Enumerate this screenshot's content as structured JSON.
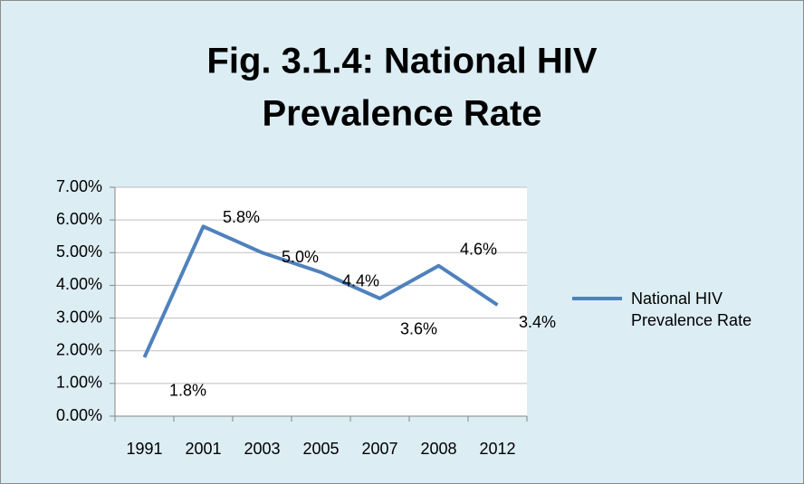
{
  "chart_data": {
    "type": "line",
    "title": [
      "Fig. 3.1.4: National HIV",
      "Prevalence Rate"
    ],
    "categories": [
      "1991",
      "2001",
      "2003",
      "2005",
      "2007",
      "2008",
      "2012"
    ],
    "series": [
      {
        "name": "National HIV Prevalence Rate",
        "color": "#4f81bd",
        "values": [
          1.8,
          5.8,
          5.0,
          4.4,
          3.6,
          4.6,
          3.4
        ],
        "value_labels": [
          "1.8%",
          "5.8%",
          "5.0%",
          "4.4%",
          "3.6%",
          "4.6%",
          "3.4%"
        ]
      }
    ],
    "ylim": [
      0,
      7
    ],
    "yticks": [
      {
        "value": 0,
        "label": "0.00%"
      },
      {
        "value": 1,
        "label": "1.00%"
      },
      {
        "value": 2,
        "label": "2.00%"
      },
      {
        "value": 3,
        "label": "3.00%"
      },
      {
        "value": 4,
        "label": "4.00%"
      },
      {
        "value": 5,
        "label": "5.00%"
      },
      {
        "value": 6,
        "label": "6.00%"
      },
      {
        "value": 7,
        "label": "7.00%"
      }
    ],
    "grid": true,
    "legend": "right"
  }
}
